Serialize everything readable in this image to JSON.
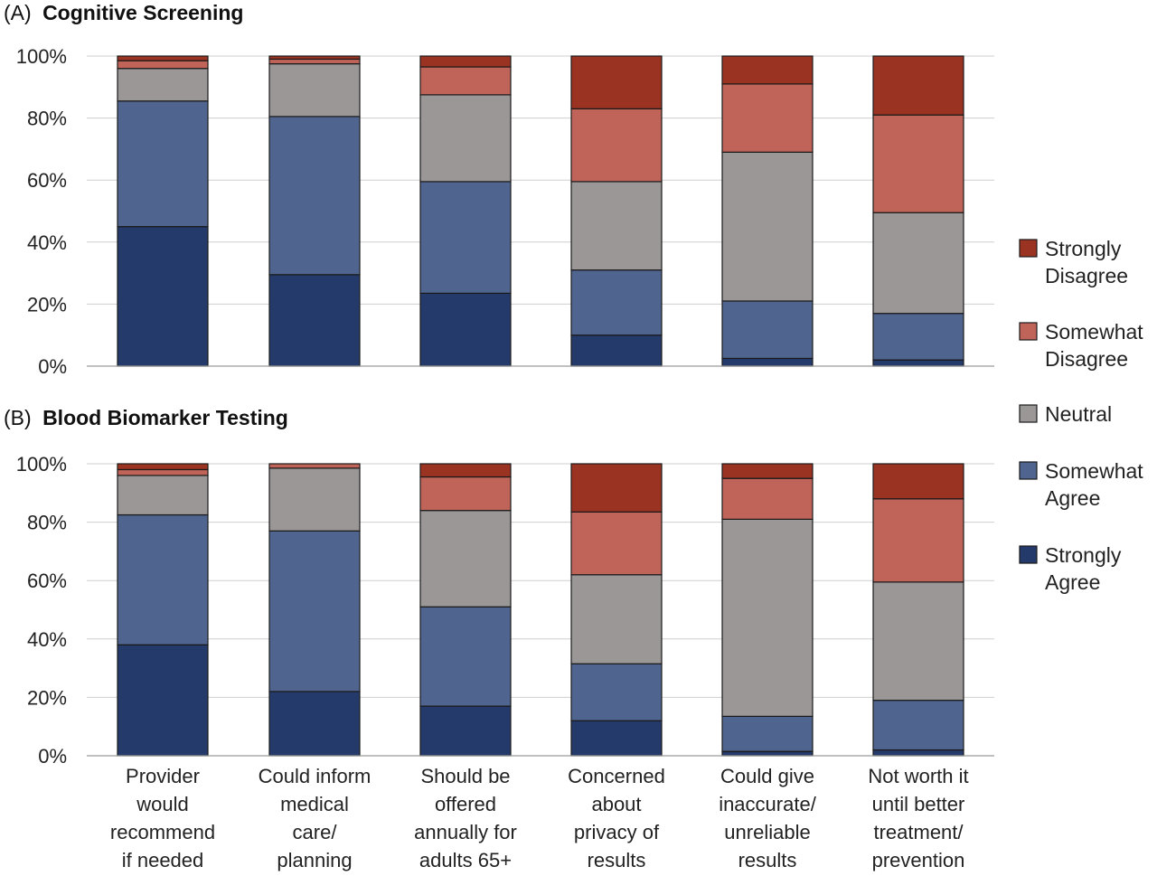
{
  "chart_data": [
    {
      "type": "bar",
      "stacked": true,
      "panel_label": "(A)",
      "title": "Cognitive Screening",
      "ylim": [
        0,
        100
      ],
      "yticks": [
        "0%",
        "20%",
        "40%",
        "60%",
        "80%",
        "100%"
      ],
      "grid": true,
      "legend_position": "right",
      "categories": [
        [
          "Provider",
          "would",
          "recommend",
          "if needed"
        ],
        [
          "Could inform",
          "medical",
          "care/",
          "planning"
        ],
        [
          "Should be",
          "offered",
          "annually for",
          "adults 65+"
        ],
        [
          "Concerned",
          "about",
          "privacy of",
          "results"
        ],
        [
          "Could give",
          "inaccurate/",
          "unreliable",
          "results"
        ],
        [
          "Not worth it",
          "until better",
          "treatment/",
          "prevention"
        ]
      ],
      "series": [
        {
          "name": "Strongly Agree",
          "values": [
            45,
            29.5,
            23.5,
            10,
            2.5,
            2
          ]
        },
        {
          "name": "Somewhat Agree",
          "values": [
            40.5,
            51,
            36,
            21,
            18.5,
            15
          ]
        },
        {
          "name": "Neutral",
          "values": [
            10.5,
            17,
            28,
            28.5,
            48,
            32.5
          ]
        },
        {
          "name": "Somewhat Disagree",
          "values": [
            2.5,
            1.5,
            9,
            23.5,
            22,
            31.5
          ]
        },
        {
          "name": "Strongly Disagree",
          "values": [
            1.5,
            1,
            3.5,
            17,
            9,
            19
          ]
        }
      ]
    },
    {
      "type": "bar",
      "stacked": true,
      "panel_label": "(B)",
      "title": "Blood Biomarker Testing",
      "ylim": [
        0,
        100
      ],
      "yticks": [
        "0%",
        "20%",
        "40%",
        "60%",
        "80%",
        "100%"
      ],
      "grid": true,
      "legend_position": "right",
      "categories": [
        [
          "Provider",
          "would",
          "recommend",
          "if needed"
        ],
        [
          "Could inform",
          "medical",
          "care/",
          "planning"
        ],
        [
          "Should be",
          "offered",
          "annually for",
          "adults 65+"
        ],
        [
          "Concerned",
          "about",
          "privacy of",
          "results"
        ],
        [
          "Could give",
          "inaccurate/",
          "unreliable",
          "results"
        ],
        [
          "Not worth it",
          "until better",
          "treatment/",
          "prevention"
        ]
      ],
      "series": [
        {
          "name": "Strongly Agree",
          "values": [
            38,
            22,
            17,
            12,
            1.5,
            2
          ]
        },
        {
          "name": "Somewhat Agree",
          "values": [
            44.5,
            55,
            34,
            19.5,
            12,
            17
          ]
        },
        {
          "name": "Neutral",
          "values": [
            13.5,
            21.5,
            33,
            30.5,
            67.5,
            40.5
          ]
        },
        {
          "name": "Somewhat Disagree",
          "values": [
            2,
            1.5,
            11.5,
            21.5,
            14,
            28.5
          ]
        },
        {
          "name": "Strongly Disagree",
          "values": [
            2,
            0,
            4.5,
            16.5,
            5,
            12
          ]
        }
      ]
    }
  ],
  "legend": [
    {
      "lines": [
        "Strongly",
        "Disagree"
      ],
      "color": "#9b3322"
    },
    {
      "lines": [
        "Somewhat",
        "Disagree"
      ],
      "color": "#c0645a"
    },
    {
      "lines": [
        "Neutral"
      ],
      "color": "#9a9796"
    },
    {
      "lines": [
        "Somewhat",
        "Agree"
      ],
      "color": "#4f6590"
    },
    {
      "lines": [
        "Strongly",
        "Agree"
      ],
      "color": "#243a6a"
    }
  ],
  "colors": {
    "Strongly Agree": "#243a6a",
    "Somewhat Agree": "#4f6590",
    "Neutral": "#9a9796",
    "Somewhat Disagree": "#c0645a",
    "Strongly Disagree": "#9b3322"
  }
}
